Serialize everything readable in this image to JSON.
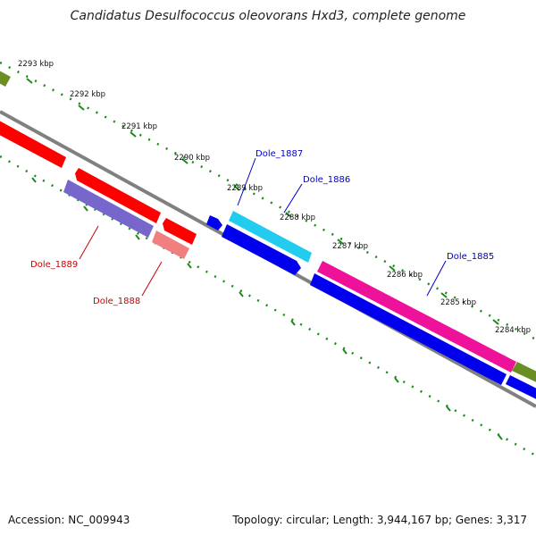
{
  "title": "Candidatus Desulfococcus oleovorans Hxd3, complete genome",
  "footer": {
    "accession": "Accession: NC_009943",
    "summary": "Topology: circular; Length: 3,944,167 bp; Genes: 3,317"
  },
  "scale_labels": [
    "2293 kbp",
    "2292 kbp",
    "2291 kbp",
    "2290 kbp",
    "2289 kbp",
    "2288 kbp",
    "2287 kbp",
    "2286 kbp",
    "2285 kbp",
    "2284 kbp"
  ],
  "gene_labels": [
    {
      "text": "Dole_1887",
      "color": "#0000cc"
    },
    {
      "text": "Dole_1886",
      "color": "#0000cc"
    },
    {
      "text": "Dole_1885",
      "color": "#0000cc"
    },
    {
      "text": "Dole_1889",
      "color": "#cc0000"
    },
    {
      "text": "Dole_1888",
      "color": "#cc0000"
    }
  ],
  "colors": {
    "backbone": "#808080",
    "tick": "#1a8a1a",
    "red": "#ff0000",
    "blue": "#0000ee",
    "cyan": "#22ccee",
    "magenta": "#ee1199",
    "purple": "#7766cc",
    "salmon": "#f08080",
    "olive": "#6b8e23"
  }
}
